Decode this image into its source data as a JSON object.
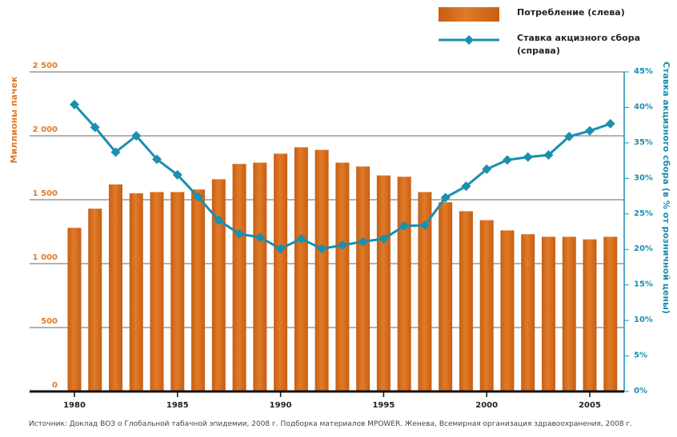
{
  "chart_data": {
    "type": "bar_line",
    "y_label": "Миллионы пачек",
    "y2_label": "Ставка акцизного сбора (в % от розничной цены)",
    "source": "Источник: Доклад ВОЗ о Глобальной табачной эпидемии, 2008 г. Подборка материалов MPOWER. Женева, Всемирная организация здравоохранения, 2008 г.",
    "categories": [
      "1980",
      null,
      null,
      null,
      null,
      "1985",
      null,
      null,
      null,
      null,
      "1990",
      null,
      null,
      null,
      null,
      "1995",
      null,
      null,
      null,
      null,
      "2000",
      null,
      null,
      null,
      null,
      "2005",
      null
    ],
    "series": [
      {
        "name": "Потребление (слева)",
        "color": "#e07b28",
        "axis": "y",
        "values": [
          1280,
          1430,
          1620,
          1550,
          1560,
          1560,
          1580,
          1660,
          1780,
          1790,
          1860,
          1910,
          1890,
          1790,
          1760,
          1690,
          1680,
          1560,
          1480,
          1410,
          1340,
          1260,
          1230,
          1210,
          1210,
          1190,
          1210
        ]
      },
      {
        "name": "Ставка акцизного сбора (справа)",
        "color": "#1b8fae",
        "axis": "y2",
        "values": [
          40.4,
          37.2,
          33.7,
          36,
          32.7,
          30.5,
          27.4,
          24.1,
          22.2,
          21.7,
          20.1,
          21.5,
          20.1,
          20.6,
          21.1,
          21.5,
          23.3,
          23.4,
          27.3,
          28.9,
          31.3,
          32.6,
          33,
          33.3,
          35.9,
          36.7,
          37.7
        ]
      }
    ],
    "ylim": [
      0,
      2500
    ],
    "yticks": [
      0,
      500,
      {
        "value": 1000,
        "label": "1 000"
      },
      {
        "value": 1500,
        "label": "1 500"
      },
      {
        "value": 2000,
        "label": "2 000"
      },
      {
        "value": 2500,
        "label": "2 500"
      }
    ],
    "y2lim": [
      0,
      45
    ],
    "y2ticks": [
      {
        "value": 0,
        "label": "0%"
      },
      {
        "value": 5,
        "label": "5%"
      },
      {
        "value": 10,
        "label": "10%"
      },
      {
        "value": 15,
        "label": "15%"
      },
      {
        "value": 20,
        "label": "20%"
      },
      {
        "value": 25,
        "label": "25%"
      },
      {
        "value": 30,
        "label": "30%"
      },
      {
        "value": 35,
        "label": "35%"
      },
      {
        "value": 40,
        "label": "40%"
      },
      {
        "value": 45,
        "label": "45%"
      }
    ],
    "grid": true,
    "legend": "top-right"
  }
}
